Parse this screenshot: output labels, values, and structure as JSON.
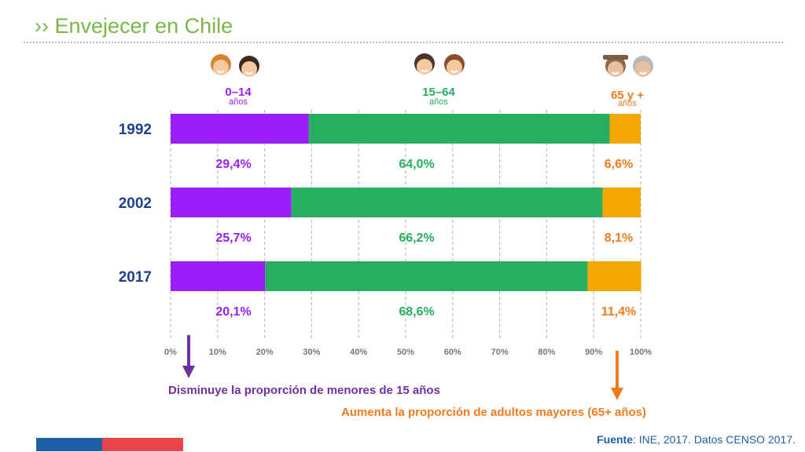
{
  "page": {
    "title": "›› Envejecer en Chile"
  },
  "groups": [
    {
      "label": "0–14",
      "sub": "años",
      "color": "#9b1dfb"
    },
    {
      "label": "15–64",
      "sub": "años",
      "color": "#27ae60"
    },
    {
      "label": "65 y +",
      "sub": "años",
      "color": "#f5a700"
    }
  ],
  "label_colors": {
    "g0": "#9b1dfb",
    "g1": "#27ae60",
    "g2": "#f07a1e",
    "year": "#1f3f8f"
  },
  "chart_data": {
    "type": "bar",
    "orientation": "horizontal",
    "stacked": true,
    "categories": [
      "1992",
      "2002",
      "2017"
    ],
    "series": [
      {
        "name": "0–14 años",
        "values": [
          29.4,
          25.7,
          20.1
        ],
        "labels": [
          "29,4%",
          "25,7%",
          "20,1%"
        ],
        "color": "#9b1dfb"
      },
      {
        "name": "15–64 años",
        "values": [
          64.0,
          66.2,
          68.6
        ],
        "labels": [
          "64,0%",
          "66,2%",
          "68,6%"
        ],
        "color": "#27ae60"
      },
      {
        "name": "65 y + años",
        "values": [
          6.6,
          8.1,
          11.4
        ],
        "labels": [
          "6,6%",
          "8,1%",
          "11,4%"
        ],
        "color": "#f5a700"
      }
    ],
    "xlim": [
      0,
      100
    ],
    "xticks": [
      "0%",
      "10%",
      "20%",
      "30%",
      "40%",
      "50%",
      "60%",
      "70%",
      "80%",
      "90%",
      "100%"
    ],
    "grid": true
  },
  "notes": {
    "decrease": "Disminuye la proporción de menores de 15 años",
    "increase": "Aumenta la proporción de adultos mayores (65+ años)",
    "decrease_color": "#7030a0",
    "increase_color": "#f07a1e"
  },
  "source": {
    "label": "Fuente",
    "text": ": INE, 2017. Datos CENSO 2017."
  }
}
